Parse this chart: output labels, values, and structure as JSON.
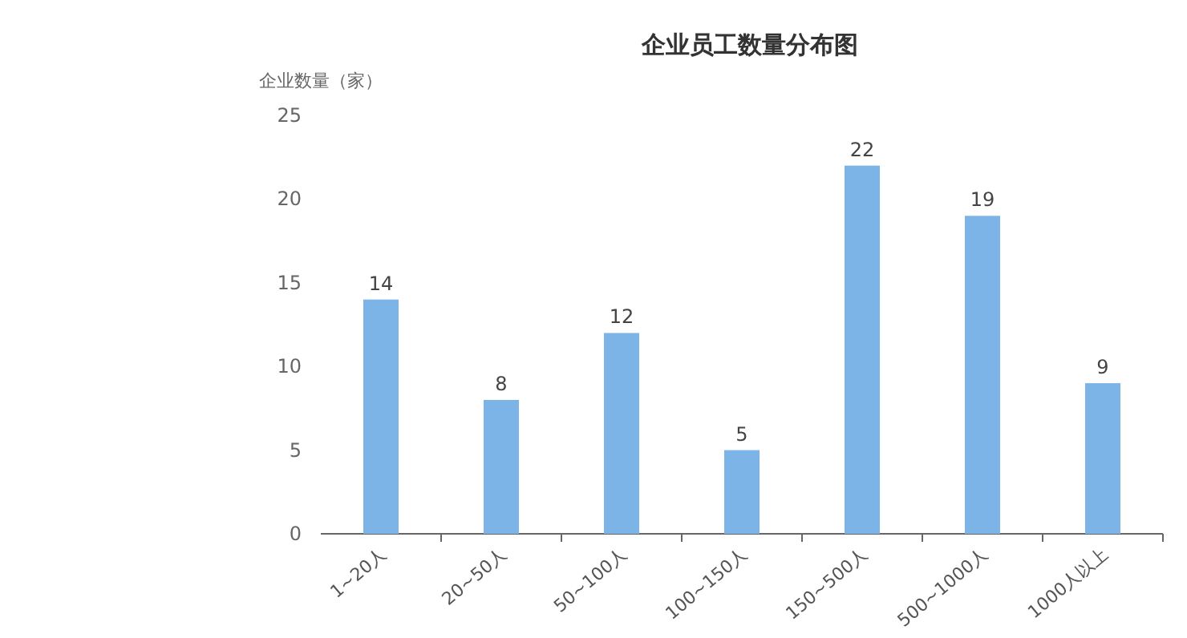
{
  "chart_data": {
    "type": "bar",
    "title": "企业员工数量分布图",
    "ylabel": "企业数量（家）",
    "categories": [
      "1~20人",
      "20~50人",
      "50~100人",
      "100~150人",
      "150~500人",
      "500~1000人",
      "1000人以上"
    ],
    "values": [
      14,
      8,
      12,
      5,
      22,
      19,
      9
    ],
    "color": "#7db4e8",
    "ylim": [
      0,
      25
    ],
    "yticks": [
      0,
      5,
      10,
      15,
      20,
      25
    ],
    "data_labels": true
  }
}
